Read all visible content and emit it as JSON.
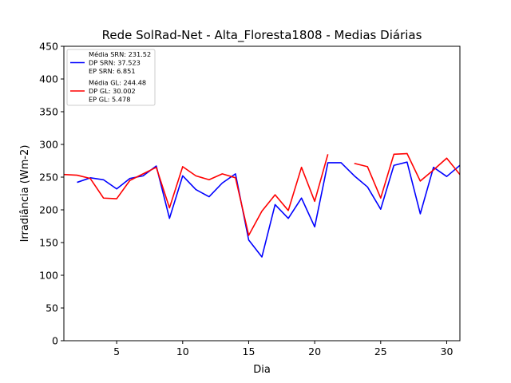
{
  "chart_data": {
    "type": "line",
    "title": "Rede SolRad-Net - Alta_Floresta1808 - Medias Diárias",
    "xlabel": "Dia",
    "ylabel": "Irradiância (Wm-2)",
    "xlim": [
      1,
      31
    ],
    "ylim": [
      0,
      450
    ],
    "xticks": [
      5,
      10,
      15,
      20,
      25,
      30
    ],
    "yticks": [
      0,
      50,
      100,
      150,
      200,
      250,
      300,
      350,
      400,
      450
    ],
    "grid": false,
    "legend_position": "top-left",
    "x": [
      1,
      2,
      3,
      4,
      5,
      6,
      7,
      8,
      9,
      10,
      11,
      12,
      13,
      14,
      15,
      16,
      17,
      18,
      19,
      20,
      21,
      22,
      23,
      24,
      25,
      26,
      27,
      28,
      29,
      30,
      31
    ],
    "series": [
      {
        "name": "SRN",
        "color": "#0000ff",
        "legend_lines": [
          "Média SRN: 231.52",
          "DP SRN: 37.523",
          "EP SRN: 6.851"
        ],
        "values": [
          null,
          242,
          249,
          246,
          232,
          248,
          252,
          267,
          187,
          252,
          231,
          220,
          241,
          255,
          154,
          128,
          208,
          187,
          218,
          174,
          272,
          272,
          252,
          235,
          201,
          268,
          273,
          194,
          265,
          251,
          268
        ]
      },
      {
        "name": "GL",
        "color": "#ff0000",
        "legend_lines": [
          "Média GL: 244.48",
          "DP GL: 30.002",
          "EP GL: 5.478"
        ],
        "values": [
          254,
          253,
          248,
          218,
          217,
          245,
          255,
          265,
          203,
          266,
          252,
          246,
          255,
          249,
          161,
          198,
          223,
          199,
          265,
          213,
          285,
          null,
          271,
          266,
          218,
          285,
          286,
          244,
          261,
          279,
          254
        ]
      }
    ]
  }
}
